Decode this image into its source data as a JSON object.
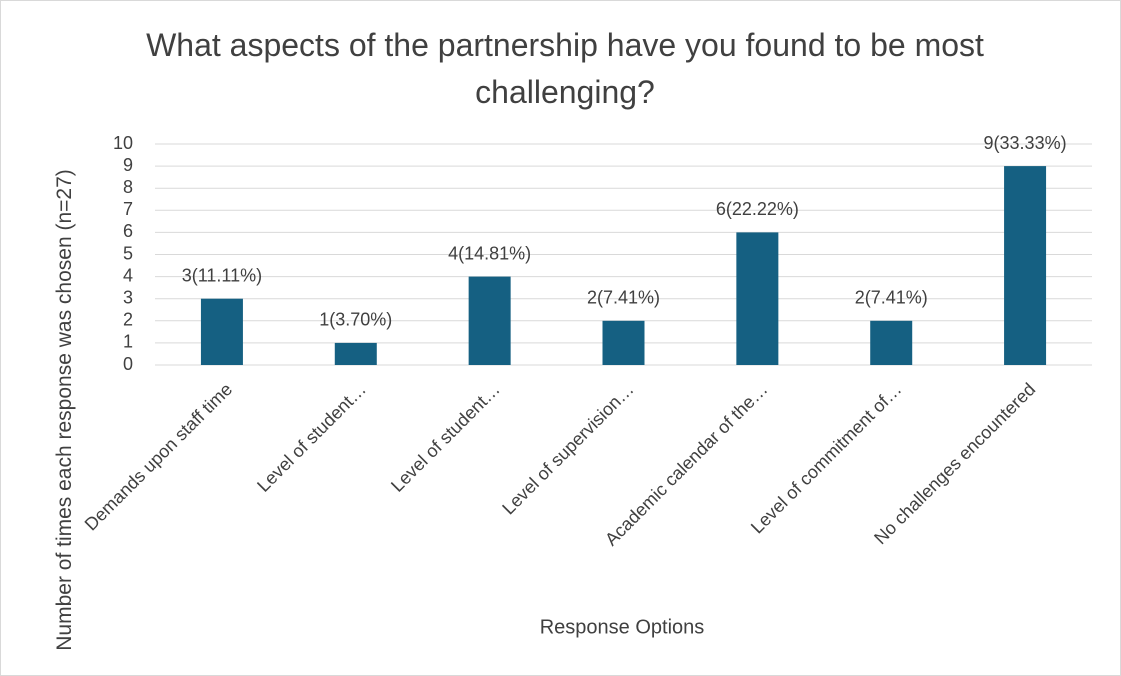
{
  "chart_data": {
    "type": "bar",
    "title": "What aspects of the partnership have you found to be most challenging?",
    "x_label": "Response Options",
    "y_label": "Number of times each response was chosen (n=27)",
    "categories": [
      "Demands upon staff time",
      "Level of student…",
      "Level of student…",
      "Level of supervision…",
      "Academic calendar of the…",
      "Level of commitment of…",
      "No challenges encountered"
    ],
    "values": [
      3,
      1,
      4,
      2,
      6,
      2,
      9
    ],
    "value_labels": [
      "3(11.11%)",
      "1(3.70%)",
      "4(14.81%)",
      "2(7.41%)",
      "6(22.22%)",
      "2(7.41%)",
      "9(33.33%)"
    ],
    "color": "#156082",
    "ylim": [
      0,
      10
    ],
    "yticks": [
      0,
      1,
      2,
      3,
      4,
      5,
      6,
      7,
      8,
      9,
      10
    ],
    "grid": true
  }
}
